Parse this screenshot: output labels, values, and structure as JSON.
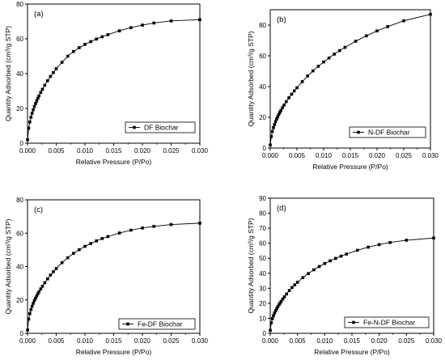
{
  "chart_data": [
    {
      "type": "line",
      "panel_label": "(a)",
      "xlabel": "Relative Pressure (P/Po)",
      "ylabel": "Quantity Adsorbed (cm³/g STP)",
      "xlim": [
        0,
        0.03
      ],
      "ylim": [
        0,
        80
      ],
      "x_ticks": [
        "0.000",
        "0.005",
        "0.010",
        "0.015",
        "0.020",
        "0.025",
        "0.030"
      ],
      "y_ticks": [
        "0",
        "20",
        "40",
        "60",
        "80"
      ],
      "series": [
        {
          "name": "DF Biochar",
          "x": [
            1e-05,
            0.0002,
            0.0004,
            0.0006,
            0.0008,
            0.001,
            0.0012,
            0.0014,
            0.0016,
            0.0018,
            0.002,
            0.0023,
            0.0026,
            0.003,
            0.0035,
            0.004,
            0.0045,
            0.005,
            0.006,
            0.007,
            0.008,
            0.009,
            0.01,
            0.011,
            0.012,
            0.013,
            0.014,
            0.016,
            0.018,
            0.02,
            0.022,
            0.025,
            0.03
          ],
          "y": [
            2,
            8.6,
            12.2,
            14.9,
            17.2,
            19.2,
            21.1,
            22.8,
            24.3,
            25.8,
            27.2,
            29.2,
            31,
            33.3,
            35.9,
            38.4,
            40.6,
            42.8,
            46.5,
            50,
            52.7,
            54.9,
            56.8,
            58.4,
            59.9,
            61.2,
            62.4,
            64.6,
            66.4,
            67.9,
            69.1,
            70.3,
            71
          ]
        }
      ],
      "legend_position": "bottom-right",
      "grid": false
    },
    {
      "type": "line",
      "panel_label": "(b)",
      "xlabel": "Relative Pressure (P/Po)",
      "ylabel": "Quantity Adsorbed (cm³/g STP)",
      "xlim": [
        0,
        0.03
      ],
      "ylim": [
        0,
        90
      ],
      "x_ticks": [
        "0.000",
        "0.005",
        "0.010",
        "0.015",
        "0.020",
        "0.025",
        "0.030"
      ],
      "y_ticks": [
        "0",
        "20",
        "40",
        "60",
        "80"
      ],
      "series": [
        {
          "name": "N-DF Biochar",
          "x": [
            1e-05,
            0.0002,
            0.0004,
            0.0006,
            0.0008,
            0.001,
            0.0012,
            0.0014,
            0.0016,
            0.0018,
            0.002,
            0.0023,
            0.0026,
            0.003,
            0.0035,
            0.004,
            0.0045,
            0.005,
            0.006,
            0.007,
            0.008,
            0.009,
            0.01,
            0.011,
            0.012,
            0.013,
            0.014,
            0.016,
            0.018,
            0.02,
            0.022,
            0.025,
            0.03
          ],
          "y": [
            2,
            7.5,
            10.8,
            13.3,
            15.3,
            17.2,
            18.9,
            20.4,
            21.8,
            23.2,
            24.5,
            26.3,
            28,
            30.2,
            32.7,
            35,
            37.2,
            39.2,
            43.2,
            46.9,
            50.2,
            53.2,
            56,
            58.6,
            61.1,
            63.4,
            65.5,
            69.5,
            73,
            76.2,
            79,
            82.8,
            87
          ]
        }
      ],
      "legend_position": "bottom-right",
      "grid": false
    },
    {
      "type": "line",
      "panel_label": "(c)",
      "xlabel": "Relative Pressure (P/Po)",
      "ylabel": "Quantity Adsorbed (cm³/g STP)",
      "xlim": [
        0,
        0.03
      ],
      "ylim": [
        0,
        80
      ],
      "x_ticks": [
        "0.000",
        "0.005",
        "0.010",
        "0.015",
        "0.020",
        "0.025",
        "0.030"
      ],
      "y_ticks": [
        "0",
        "20",
        "40",
        "60",
        "80"
      ],
      "series": [
        {
          "name": "Fe-DF Biochar",
          "x": [
            1e-05,
            0.0002,
            0.0004,
            0.0006,
            0.0008,
            0.001,
            0.0012,
            0.0014,
            0.0016,
            0.0018,
            0.002,
            0.0023,
            0.0026,
            0.003,
            0.0035,
            0.004,
            0.0045,
            0.005,
            0.006,
            0.007,
            0.008,
            0.009,
            0.01,
            0.011,
            0.012,
            0.013,
            0.014,
            0.016,
            0.018,
            0.02,
            0.022,
            0.025,
            0.03
          ],
          "y": [
            2,
            8.5,
            11.8,
            14.2,
            16.2,
            18,
            19.6,
            21,
            22.4,
            23.7,
            24.9,
            26.6,
            28.2,
            30.3,
            32.6,
            34.9,
            36.9,
            38.8,
            42.3,
            45.3,
            47.9,
            50.1,
            52.1,
            53.8,
            55.4,
            56.8,
            58,
            60.1,
            61.8,
            63.1,
            64.1,
            65.2,
            66
          ]
        }
      ],
      "legend_position": "bottom-right",
      "grid": false
    },
    {
      "type": "line",
      "panel_label": "(d)",
      "xlabel": "Relative Pressure (P/Po)",
      "ylabel": "Quantity Adsorbed (cm³/g STP)",
      "xlim": [
        0,
        0.03
      ],
      "ylim": [
        0,
        90
      ],
      "x_ticks": [
        "0.000",
        "0.005",
        "0.010",
        "0.015",
        "0.020",
        "0.025",
        "0.030"
      ],
      "y_ticks": [
        "0",
        "10",
        "20",
        "30",
        "40",
        "50",
        "60",
        "70",
        "80",
        "90"
      ],
      "series": [
        {
          "name": "Fe-N-DF Biochar",
          "x": [
            1e-05,
            0.0002,
            0.0004,
            0.0006,
            0.0008,
            0.001,
            0.0012,
            0.0014,
            0.0016,
            0.0018,
            0.002,
            0.0023,
            0.0026,
            0.003,
            0.0035,
            0.004,
            0.0045,
            0.005,
            0.006,
            0.007,
            0.008,
            0.009,
            0.01,
            0.011,
            0.012,
            0.013,
            0.014,
            0.016,
            0.018,
            0.02,
            0.022,
            0.025,
            0.03
          ],
          "y": [
            2,
            7,
            9.8,
            11.8,
            13.6,
            15.1,
            16.5,
            17.8,
            19,
            20.1,
            21.2,
            22.8,
            24.3,
            26.2,
            28.5,
            30.5,
            32.3,
            34,
            37.1,
            39.8,
            42.3,
            44.5,
            46.5,
            48.3,
            49.9,
            51.4,
            52.8,
            55.3,
            57.4,
            59.1,
            60.5,
            62,
            63.5
          ]
        }
      ],
      "legend_position": "bottom-right",
      "grid": false
    }
  ]
}
